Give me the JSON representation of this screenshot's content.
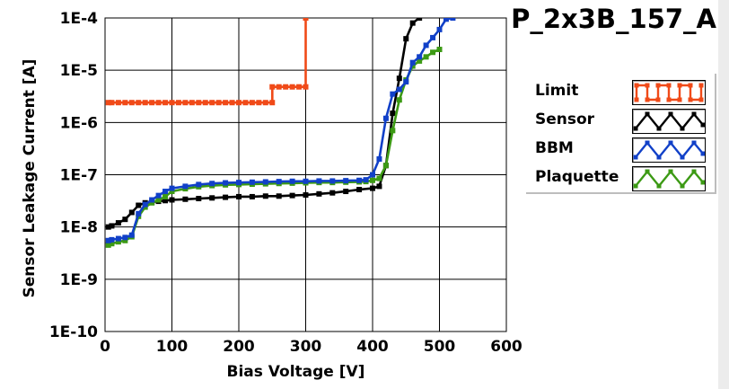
{
  "chart_data": {
    "type": "line",
    "title": "P_2x3B_157_A",
    "xlabel": "Bias Voltage [V]",
    "ylabel": "Sensor Leakage Current [A]",
    "xlim": [
      0,
      600
    ],
    "ylim": [
      1e-10,
      0.0001
    ],
    "yscale": "log",
    "grid": true,
    "legend_position": "right",
    "xticks": [
      0,
      100,
      200,
      300,
      400,
      500,
      600
    ],
    "xtick_labels": [
      "0",
      "100",
      "200",
      "300",
      "400",
      "500",
      "600"
    ],
    "yticks": [
      1e-10,
      1e-09,
      1e-08,
      1e-07,
      1e-06,
      1e-05,
      0.0001
    ],
    "ytick_labels": [
      "1E-10",
      "1E-9",
      "1E-8",
      "1E-7",
      "1E-6",
      "1E-5",
      "1E-4"
    ],
    "series": [
      {
        "name": "Limit",
        "color": "#f04a18",
        "x": [
          5,
          10,
          20,
          30,
          40,
          50,
          60,
          70,
          80,
          90,
          100,
          110,
          120,
          130,
          140,
          150,
          160,
          170,
          180,
          190,
          200,
          210,
          220,
          230,
          240,
          250,
          250,
          260,
          270,
          280,
          290,
          300,
          300
        ],
        "y": [
          2.4e-06,
          2.4e-06,
          2.4e-06,
          2.4e-06,
          2.4e-06,
          2.4e-06,
          2.4e-06,
          2.4e-06,
          2.4e-06,
          2.4e-06,
          2.4e-06,
          2.4e-06,
          2.4e-06,
          2.4e-06,
          2.4e-06,
          2.4e-06,
          2.4e-06,
          2.4e-06,
          2.4e-06,
          2.4e-06,
          2.4e-06,
          2.4e-06,
          2.4e-06,
          2.4e-06,
          2.4e-06,
          2.4e-06,
          4.8e-06,
          4.8e-06,
          4.8e-06,
          4.8e-06,
          4.8e-06,
          4.8e-06,
          0.0001
        ]
      },
      {
        "name": "Sensor",
        "color": "#000000",
        "x": [
          5,
          10,
          20,
          30,
          40,
          50,
          60,
          70,
          80,
          90,
          100,
          120,
          140,
          160,
          180,
          200,
          220,
          240,
          260,
          280,
          300,
          320,
          340,
          360,
          380,
          400,
          410,
          420,
          430,
          440,
          450,
          460,
          470
        ],
        "y": [
          1e-08,
          1.05e-08,
          1.2e-08,
          1.4e-08,
          1.9e-08,
          2.6e-08,
          2.9e-08,
          3e-08,
          3.1e-08,
          3.2e-08,
          3.3e-08,
          3.4e-08,
          3.5e-08,
          3.6e-08,
          3.7e-08,
          3.8e-08,
          3.8e-08,
          3.9e-08,
          3.9e-08,
          4e-08,
          4.1e-08,
          4.3e-08,
          4.5e-08,
          4.8e-08,
          5.2e-08,
          5.5e-08,
          6e-08,
          1.5e-07,
          1.5e-06,
          7e-06,
          4e-05,
          8e-05,
          0.0001
        ]
      },
      {
        "name": "BBM",
        "color": "#1140c8",
        "x": [
          5,
          10,
          20,
          30,
          40,
          50,
          60,
          70,
          80,
          90,
          100,
          120,
          140,
          160,
          180,
          200,
          220,
          240,
          260,
          280,
          300,
          320,
          340,
          360,
          380,
          390,
          400,
          410,
          420,
          430,
          440,
          450,
          460,
          470,
          480,
          490,
          500,
          510,
          520
        ],
        "y": [
          5.5e-09,
          5.7e-09,
          6e-09,
          6.3e-09,
          7e-09,
          1.8e-08,
          2.7e-08,
          3.3e-08,
          4e-08,
          4.8e-08,
          5.5e-08,
          6e-08,
          6.5e-08,
          6.8e-08,
          7e-08,
          7.1e-08,
          7.2e-08,
          7.3e-08,
          7.4e-08,
          7.5e-08,
          7.5e-08,
          7.6e-08,
          7.6e-08,
          7.7e-08,
          7.8e-08,
          8e-08,
          1e-07,
          2e-07,
          1.2e-06,
          3.5e-06,
          4.3e-06,
          6e-06,
          1.4e-05,
          1.8e-05,
          3e-05,
          4.2e-05,
          6e-05,
          9.5e-05,
          0.0001
        ]
      },
      {
        "name": "Plaquette",
        "color": "#3c9a14",
        "x": [
          5,
          10,
          20,
          30,
          40,
          50,
          60,
          70,
          80,
          90,
          100,
          120,
          140,
          160,
          180,
          200,
          220,
          240,
          260,
          280,
          300,
          320,
          340,
          360,
          380,
          390,
          400,
          410,
          420,
          430,
          440,
          450,
          460,
          470,
          480,
          490,
          500
        ],
        "y": [
          4.5e-09,
          4.8e-09,
          5.2e-09,
          5.5e-09,
          6.5e-09,
          1.6e-08,
          2.4e-08,
          2.9e-08,
          3.3e-08,
          3.8e-08,
          4.8e-08,
          5.4e-08,
          5.9e-08,
          6.2e-08,
          6.4e-08,
          6.5e-08,
          6.6e-08,
          6.7e-08,
          6.8e-08,
          6.9e-08,
          7e-08,
          7.1e-08,
          7.1e-08,
          7.2e-08,
          7.3e-08,
          7.4e-08,
          7.8e-08,
          8.5e-08,
          1.5e-07,
          7e-07,
          2.7e-06,
          6.5e-06,
          1.2e-05,
          1.5e-05,
          1.8e-05,
          2.2e-05,
          2.5e-05
        ]
      }
    ]
  }
}
